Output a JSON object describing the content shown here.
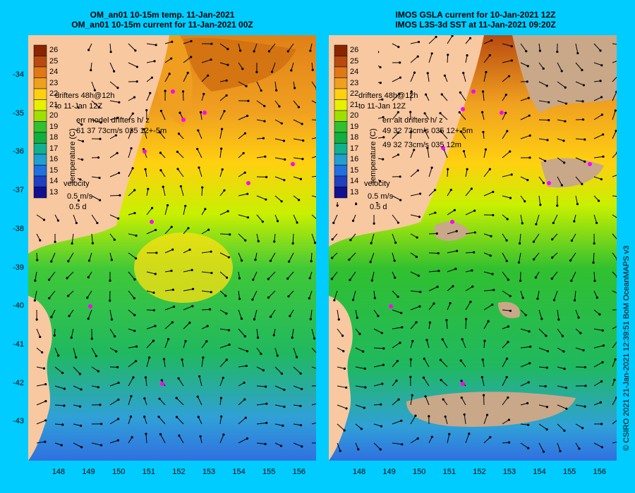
{
  "left_panel": {
    "title_line1": "OM_an01 10-15m temp. 11-Jan-2021",
    "title_line2": "OM_an01 10-15m current for 11-Jan-2021 00Z",
    "legend_drifter1": "drifters 48h@12h",
    "legend_drifter2": "to 11-Jan 12Z",
    "legend_err_title": "err model drifters h/ z",
    "legend_err_line1": "61 37 73cm/s 035 12+-5m",
    "legend_err_line2": "",
    "cbar_unit": "temperature (C)",
    "depth_top": "5m",
    "depth_bottom": "12m"
  },
  "right_panel": {
    "title_line1": "IMOS GSLA current for 10-Jan-2021 12Z",
    "title_line2": "IMOS L3S-3d SST at 11-Jan-2021 09:20Z",
    "legend_drifter1": "drifters 48h@12h",
    "legend_drifter2": "to 11-Jan 12Z",
    "legend_err_title": "err alt drifters h/ z",
    "legend_err_line1": "49 32 73cm/s 035 12+-5m",
    "legend_err_line2": "49 32 73cm/s 035 12m",
    "cbar_unit": "temperature (C)",
    "depth_top": "5m",
    "depth_bottom": "12m"
  },
  "velocity_legend": {
    "title": "velocity",
    "speed": "0.5 m/s",
    "duration": "0.5 d"
  },
  "colorbar": {
    "ticks": [
      "26",
      "25",
      "24",
      "23",
      "22",
      "21",
      "20",
      "19",
      "18",
      "17",
      "16",
      "15",
      "14",
      "13"
    ],
    "colors": [
      "#8b2500",
      "#b84a10",
      "#e07818",
      "#f0a020",
      "#ffd010",
      "#e8f000",
      "#a0e000",
      "#30c030",
      "#10b040",
      "#10b090",
      "#20a0d0",
      "#2070e0",
      "#2040c0",
      "#101090"
    ]
  },
  "axes": {
    "lat_ticks": [
      "-34",
      "-35",
      "-36",
      "-37",
      "-38",
      "-39",
      "-40",
      "-41",
      "-42",
      "-43"
    ],
    "lon_ticks": [
      "148",
      "149",
      "150",
      "151",
      "152",
      "153",
      "154",
      "155",
      "156"
    ]
  },
  "credit": "© CSIRO 2021   21-Jan-2021 12:39:51 BoM OceanMAPS v3",
  "colors": {
    "land": "#f8c8a0",
    "no_data": "#c8a888",
    "drifter": "#ff00ff",
    "background": "#00ccff"
  }
}
